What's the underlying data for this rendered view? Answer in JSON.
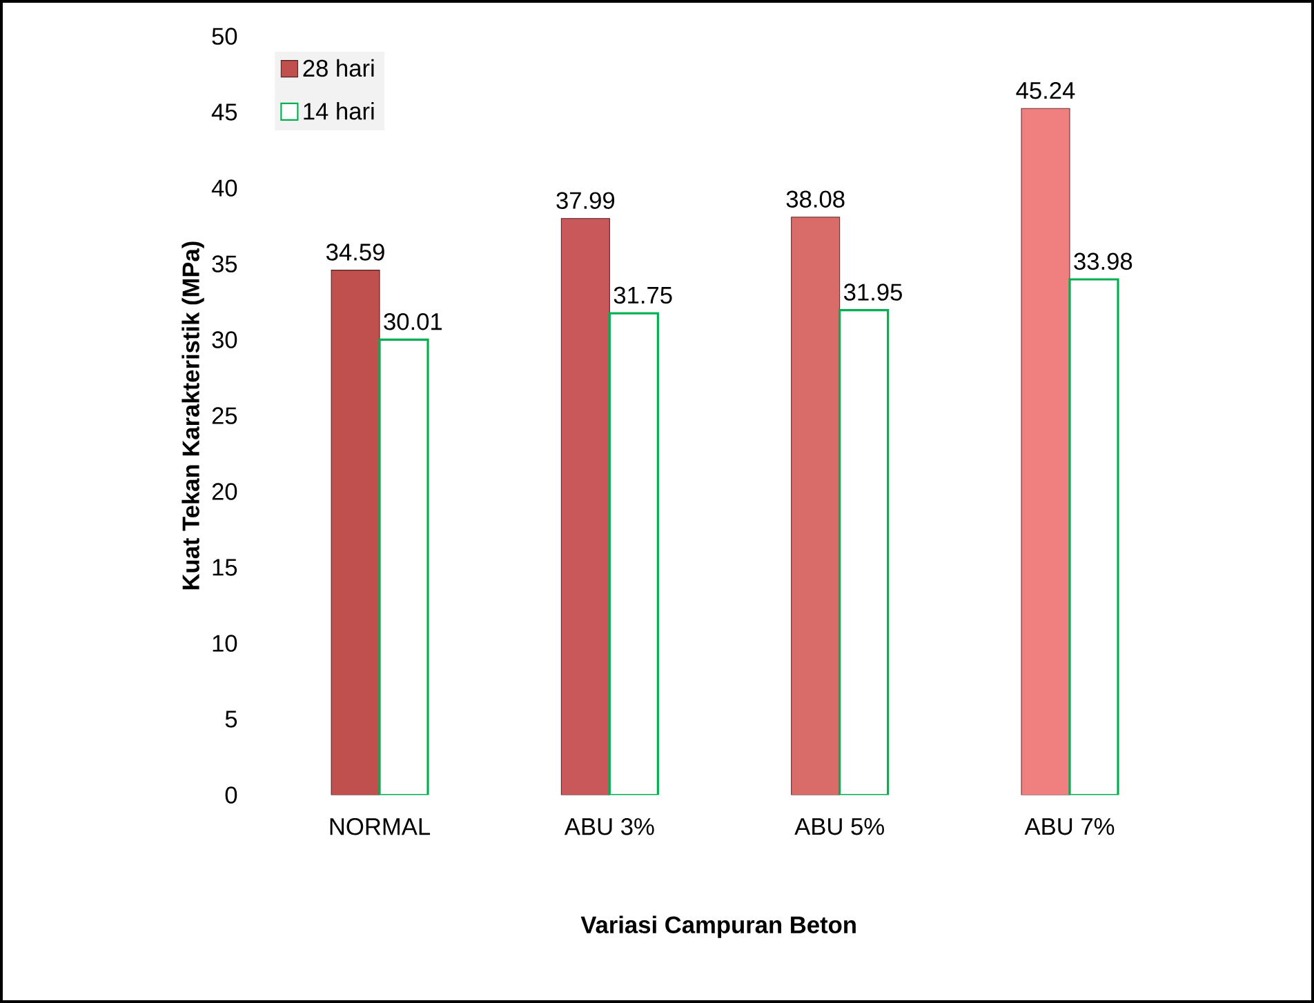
{
  "chart_data": {
    "type": "bar",
    "xlabel": "Variasi Campuran Beton",
    "ylabel": "Kuat Tekan Karakteristik (MPa)",
    "categories": [
      "NORMAL",
      "ABU 3%",
      "ABU 5%",
      "ABU 7%"
    ],
    "series": [
      {
        "name": "28 hari",
        "color": "#c0504d",
        "colors": [
          "#c0504d",
          "#c9585a",
          "#d96b69",
          "#f08080"
        ],
        "values": [
          34.59,
          37.99,
          38.08,
          45.24
        ]
      },
      {
        "name": "14 hari",
        "color": "#00b050",
        "values": [
          30.01,
          31.75,
          31.95,
          33.98
        ]
      }
    ],
    "ylim": [
      0,
      50
    ],
    "yticks": [
      0,
      5,
      10,
      15,
      20,
      25,
      30,
      35,
      40,
      45,
      50
    ],
    "data_labels": true,
    "legend": "top left",
    "grid": false
  }
}
